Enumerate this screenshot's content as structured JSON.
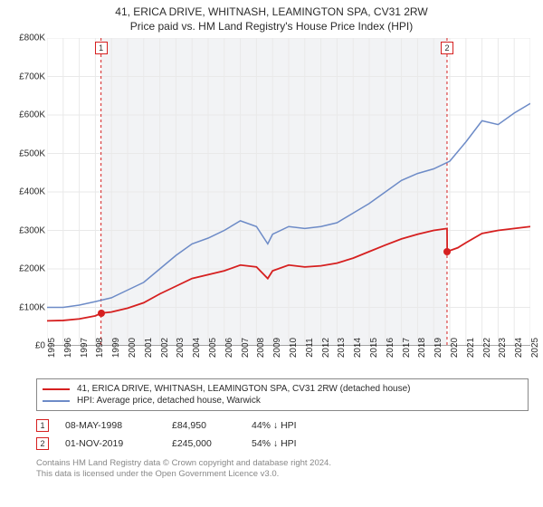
{
  "title_line1": "41, ERICA DRIVE, WHITNASH, LEAMINGTON SPA, CV31 2RW",
  "title_line2": "Price paid vs. HM Land Registry's House Price Index (HPI)",
  "chart": {
    "type": "line",
    "background_color": "#ffffff",
    "shaded_band_color": "#f2f3f5",
    "grid_color": "#e9e9e9",
    "axis_color": "#555",
    "label_fontsize": 10,
    "xlim": [
      1995,
      2025
    ],
    "ylim": [
      0,
      800000
    ],
    "ytick_step": 100000,
    "yticks": [
      "£0",
      "£100K",
      "£200K",
      "£300K",
      "£400K",
      "£500K",
      "£600K",
      "£700K",
      "£800K"
    ],
    "xticks": [
      1995,
      1996,
      1997,
      1998,
      1999,
      2000,
      2001,
      2002,
      2003,
      2004,
      2005,
      2006,
      2007,
      2008,
      2009,
      2010,
      2011,
      2012,
      2013,
      2014,
      2015,
      2016,
      2017,
      2018,
      2019,
      2020,
      2021,
      2022,
      2023,
      2024,
      2025
    ],
    "shaded_band": {
      "start": 1998.35,
      "end": 2019.83
    },
    "sale_markers": [
      {
        "x": 1998.35,
        "y": 84950,
        "label": "1",
        "color": "#d62020"
      },
      {
        "x": 2019.83,
        "y": 245000,
        "label": "2",
        "color": "#d62020"
      }
    ],
    "series": [
      {
        "name": "price_paid",
        "color": "#d62020",
        "line_width": 1.8,
        "data": [
          [
            1995,
            65000
          ],
          [
            1996,
            66000
          ],
          [
            1997,
            70000
          ],
          [
            1998,
            78000
          ],
          [
            1998.35,
            84950
          ],
          [
            1999,
            88000
          ],
          [
            2000,
            98000
          ],
          [
            2001,
            112000
          ],
          [
            2002,
            135000
          ],
          [
            2003,
            155000
          ],
          [
            2004,
            175000
          ],
          [
            2005,
            185000
          ],
          [
            2006,
            195000
          ],
          [
            2007,
            210000
          ],
          [
            2008,
            205000
          ],
          [
            2008.7,
            175000
          ],
          [
            2009,
            195000
          ],
          [
            2010,
            210000
          ],
          [
            2011,
            205000
          ],
          [
            2012,
            208000
          ],
          [
            2013,
            215000
          ],
          [
            2014,
            228000
          ],
          [
            2015,
            245000
          ],
          [
            2016,
            262000
          ],
          [
            2017,
            278000
          ],
          [
            2018,
            290000
          ],
          [
            2019,
            300000
          ],
          [
            2019.83,
            305000
          ],
          [
            2019.84,
            245000
          ],
          [
            2020.5,
            255000
          ],
          [
            2021,
            268000
          ],
          [
            2022,
            292000
          ],
          [
            2023,
            300000
          ],
          [
            2024,
            305000
          ],
          [
            2025,
            310000
          ]
        ]
      },
      {
        "name": "hpi",
        "color": "#6d8bc7",
        "line_width": 1.5,
        "data": [
          [
            1995,
            100000
          ],
          [
            1996,
            100000
          ],
          [
            1997,
            106000
          ],
          [
            1998,
            115000
          ],
          [
            1999,
            125000
          ],
          [
            2000,
            145000
          ],
          [
            2001,
            165000
          ],
          [
            2002,
            200000
          ],
          [
            2003,
            235000
          ],
          [
            2004,
            265000
          ],
          [
            2005,
            280000
          ],
          [
            2006,
            300000
          ],
          [
            2007,
            325000
          ],
          [
            2008,
            310000
          ],
          [
            2008.7,
            265000
          ],
          [
            2009,
            290000
          ],
          [
            2010,
            310000
          ],
          [
            2011,
            305000
          ],
          [
            2012,
            310000
          ],
          [
            2013,
            320000
          ],
          [
            2014,
            345000
          ],
          [
            2015,
            370000
          ],
          [
            2016,
            400000
          ],
          [
            2017,
            430000
          ],
          [
            2018,
            448000
          ],
          [
            2019,
            460000
          ],
          [
            2020,
            480000
          ],
          [
            2021,
            530000
          ],
          [
            2022,
            585000
          ],
          [
            2023,
            575000
          ],
          [
            2024,
            605000
          ],
          [
            2025,
            630000
          ]
        ]
      }
    ]
  },
  "legend": {
    "items": [
      {
        "color": "#d62020",
        "label": "41, ERICA DRIVE, WHITNASH, LEAMINGTON SPA, CV31 2RW (detached house)"
      },
      {
        "color": "#6d8bc7",
        "label": "HPI: Average price, detached house, Warwick"
      }
    ]
  },
  "sales": [
    {
      "badge": "1",
      "badge_color": "#d62020",
      "date": "08-MAY-1998",
      "price": "£84,950",
      "pct": "44% ↓ HPI"
    },
    {
      "badge": "2",
      "badge_color": "#d62020",
      "date": "01-NOV-2019",
      "price": "£245,000",
      "pct": "54% ↓ HPI"
    }
  ],
  "footer_line1": "Contains HM Land Registry data © Crown copyright and database right 2024.",
  "footer_line2": "This data is licensed under the Open Government Licence v3.0."
}
